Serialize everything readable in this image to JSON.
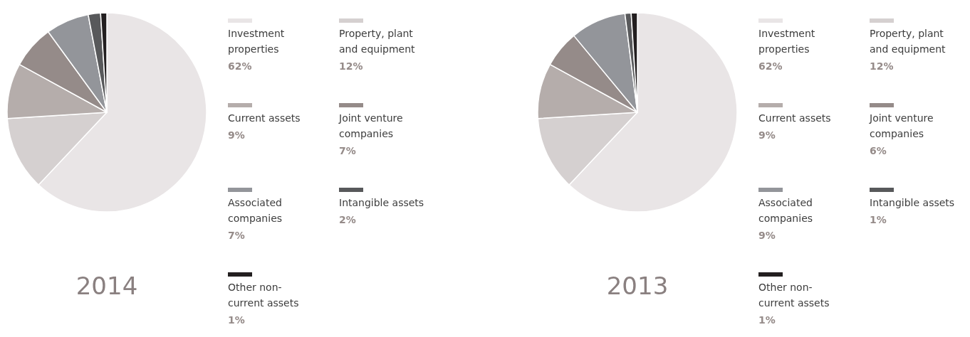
{
  "chart_data": [
    {
      "type": "pie",
      "title": "2014",
      "categories": [
        "Investment properties",
        "Property, plant and equipment",
        "Current assets",
        "Joint venture companies",
        "Associated companies",
        "Intangible assets",
        "Other non-current assets"
      ],
      "values": [
        62,
        12,
        9,
        7,
        7,
        2,
        1
      ],
      "colors": [
        "#e9e5e6",
        "#d5d0d0",
        "#b5adab",
        "#958b89",
        "#93959a",
        "#58595b",
        "#231f20"
      ],
      "value_labels": [
        "62%",
        "12%",
        "9%",
        "7%",
        "7%",
        "2%",
        "1%"
      ],
      "legend": "right"
    },
    {
      "type": "pie",
      "title": "2013",
      "categories": [
        "Investment properties",
        "Property, plant and equipment",
        "Current assets",
        "Joint venture companies",
        "Associated companies",
        "Intangible assets",
        "Other non-current assets"
      ],
      "values": [
        62,
        12,
        9,
        6,
        9,
        1,
        1
      ],
      "colors": [
        "#e9e5e6",
        "#d5d0d0",
        "#b5adab",
        "#958b89",
        "#93959a",
        "#58595b",
        "#231f20"
      ],
      "value_labels": [
        "62%",
        "12%",
        "9%",
        "6%",
        "9%",
        "1%",
        "1%"
      ],
      "legend": "right"
    }
  ]
}
